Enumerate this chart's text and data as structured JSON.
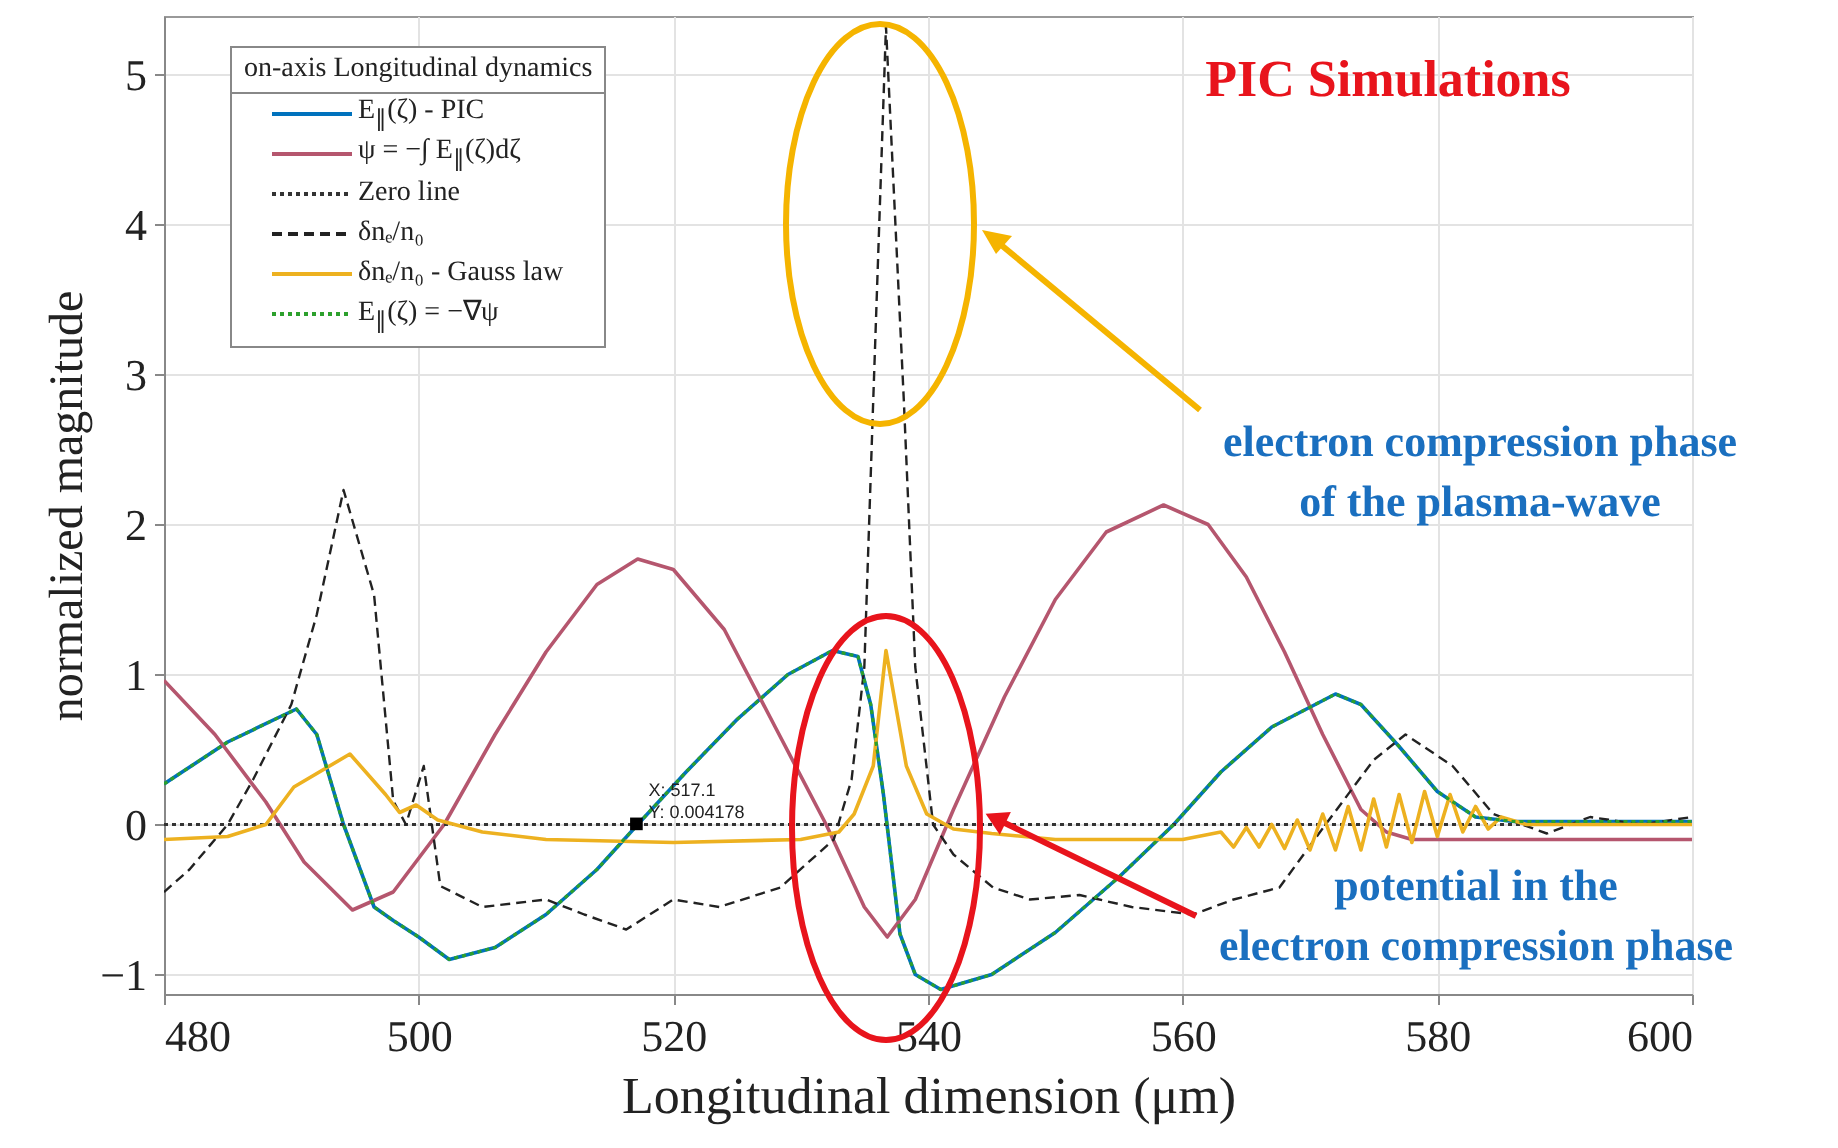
{
  "chart_data": {
    "type": "line",
    "xlabel": "Longitudinal dimension (μm)",
    "ylabel": "normalized magnitude",
    "legend_title": "on-axis Longitudinal dynamics",
    "legend": "top left",
    "grid": true,
    "xlim": [
      480,
      600
    ],
    "xticks": [
      480,
      500,
      520,
      540,
      560,
      580,
      600
    ],
    "ylim": [
      -1.13,
      5.39
    ],
    "yticks": [
      {
        "value": -1,
        "label": "−1"
      },
      {
        "value": 0,
        "label": "0"
      },
      {
        "value": 1,
        "label": "1"
      },
      {
        "value": 2,
        "label": "2"
      },
      {
        "value": 3,
        "label": "3"
      },
      {
        "value": 4,
        "label": "4"
      },
      {
        "value": 5,
        "label": "5"
      }
    ],
    "annotations": [
      "PIC Simulations",
      "electron compression phase\nof the plasma-wave",
      {
        "text": "potential in the\nelectron compression phase",
        "x": 545.3,
        "y": 0.04
      },
      {
        "text": "X: 517.1\nY: 0.004178",
        "x": 517.1,
        "y": 0.004178
      }
    ],
    "series": [
      {
        "name": "E$_{∥}$(ζ) - PIC",
        "color": "#0072bd",
        "line_style": "solid",
        "x": [
          480,
          485,
          490.4,
          492,
          494.1,
          496.5,
          498,
          500,
          502.4,
          506,
          510,
          514,
          517.2,
          521,
          525,
          529,
          532.5,
          534.5,
          535.5,
          536.5,
          537.8,
          539,
          541,
          545,
          550,
          555,
          559.3,
          563,
          567,
          572,
          574,
          577,
          580,
          583,
          586,
          600
        ],
        "values": [
          0.27,
          0.55,
          0.77,
          0.6,
          0.0,
          -0.55,
          -0.64,
          -0.75,
          -0.9,
          -0.82,
          -0.6,
          -0.3,
          0,
          0.35,
          0.7,
          1.0,
          1.16,
          1.12,
          0.8,
          0.2,
          -0.73,
          -1.0,
          -1.1,
          -1.0,
          -0.72,
          -0.35,
          0,
          0.35,
          0.65,
          0.87,
          0.8,
          0.52,
          0.22,
          0.05,
          0.02,
          0.02
        ]
      },
      {
        "name": "ψ = −∫ E$_{∥}$(ζ)dζ",
        "color": "#b5566e",
        "line_style": "solid",
        "x": [
          480,
          484,
          488,
          491,
          494.8,
          498,
          502,
          506,
          510,
          514,
          517.2,
          520,
          524,
          528,
          532,
          535,
          536.8,
          539,
          542,
          546,
          550,
          554,
          558.5,
          562,
          565,
          568,
          571,
          574,
          576,
          578,
          600
        ],
        "values": [
          0.96,
          0.6,
          0.15,
          -0.25,
          -0.57,
          -0.45,
          0.0,
          0.6,
          1.15,
          1.6,
          1.77,
          1.7,
          1.3,
          0.65,
          0.0,
          -0.55,
          -0.75,
          -0.5,
          0.1,
          0.85,
          1.5,
          1.95,
          2.13,
          2.0,
          1.65,
          1.15,
          0.6,
          0.1,
          -0.05,
          -0.1,
          -0.1
        ]
      },
      {
        "name": "Zero line",
        "color": "#333333",
        "line_style": "dotted",
        "x": [
          480,
          600
        ],
        "values": [
          0,
          0
        ]
      },
      {
        "name": "δnₑ/n₀",
        "color": "#222222",
        "line_style": "dashed",
        "x": [
          480,
          482,
          485,
          487,
          490,
          492,
          494.1,
          496.5,
          498,
          499,
          500.4,
          501.7,
          505,
          510,
          513,
          516.3,
          520,
          523.6,
          528.4,
          532.6,
          534,
          535,
          535.7,
          536.7,
          538.1,
          539,
          540.4,
          542,
          545.1,
          548,
          551.9,
          556,
          560.8,
          564,
          567.6,
          570.7,
          575,
          577.5,
          581.2,
          584.4,
          588.6,
          592,
          596,
          600
        ],
        "values": [
          -0.45,
          -0.3,
          0.0,
          0.3,
          0.8,
          1.4,
          2.23,
          1.53,
          0.16,
          0.0,
          0.39,
          -0.41,
          -0.55,
          -0.5,
          -0.6,
          -0.7,
          -0.5,
          -0.55,
          -0.42,
          -0.1,
          0.3,
          1.05,
          2.83,
          5.32,
          2.83,
          1.05,
          0.0,
          -0.2,
          -0.42,
          -0.5,
          -0.47,
          -0.55,
          -0.6,
          -0.5,
          -0.42,
          -0.06,
          0.43,
          0.6,
          0.39,
          0.07,
          -0.06,
          0.05,
          0.0,
          0.05
        ]
      },
      {
        "name": "δnₑ/n₀ - Gauss law",
        "color": "#edb120",
        "line_style": "solid",
        "x": [
          480,
          485,
          488,
          490.2,
          494.6,
          497.4,
          498.5,
          499.8,
          501.5,
          505,
          510,
          520,
          530,
          533,
          534.2,
          535.7,
          536.7,
          538.3,
          539.9,
          542,
          545,
          550,
          555,
          560,
          563,
          564,
          565,
          566,
          567,
          568,
          569,
          570,
          571,
          572,
          573,
          574,
          575,
          576,
          577,
          578,
          579,
          580,
          581,
          582,
          583,
          584,
          585,
          587,
          600
        ],
        "values": [
          -0.1,
          -0.08,
          0.0,
          0.25,
          0.47,
          0.2,
          0.08,
          0.13,
          0.03,
          -0.05,
          -0.1,
          -0.12,
          -0.1,
          -0.05,
          0.07,
          0.39,
          1.16,
          0.39,
          0.07,
          -0.03,
          -0.06,
          -0.1,
          -0.1,
          -0.1,
          -0.05,
          -0.15,
          -0.02,
          -0.15,
          0.0,
          -0.16,
          0.03,
          -0.17,
          0.07,
          -0.17,
          0.12,
          -0.17,
          0.17,
          -0.15,
          0.2,
          -0.12,
          0.22,
          -0.08,
          0.2,
          -0.05,
          0.12,
          -0.03,
          0.05,
          0.0,
          0.0
        ]
      },
      {
        "name": "E$_{∥}$(ζ) = −∇ψ",
        "color": "#2ca02c",
        "line_style": "dotted",
        "x": [
          480,
          485,
          490.4,
          492,
          494.1,
          496.5,
          498,
          500,
          502.4,
          506,
          510,
          514,
          517.2,
          521,
          525,
          529,
          532.5,
          534.5,
          535.5,
          536.5,
          537.8,
          539,
          541,
          545,
          550,
          555,
          559.3,
          563,
          567,
          572,
          574,
          577,
          580,
          583,
          586,
          600
        ],
        "values": [
          0.27,
          0.55,
          0.77,
          0.6,
          0.0,
          -0.55,
          -0.64,
          -0.75,
          -0.9,
          -0.82,
          -0.6,
          -0.3,
          0,
          0.35,
          0.7,
          1.0,
          1.16,
          1.12,
          0.8,
          0.2,
          -0.73,
          -1.0,
          -1.1,
          -1.0,
          -0.72,
          -0.35,
          0,
          0.35,
          0.65,
          0.87,
          0.8,
          0.52,
          0.22,
          0.05,
          0.02,
          0.02
        ]
      }
    ]
  }
}
